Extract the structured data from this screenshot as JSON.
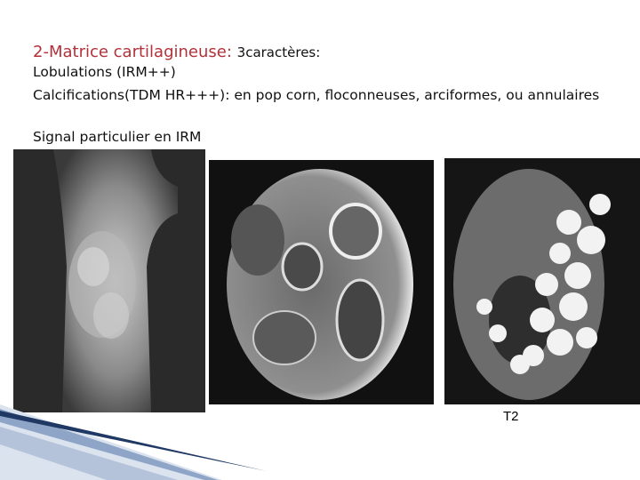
{
  "slide": {
    "heading": "2-Matrice cartilagineuse:",
    "heading_suffix": "3caractères:",
    "bullets": [
      "Lobulations (IRM++)",
      "Calcifications(TDM HR+++): en pop corn, floconneuses, arciformes, ou annulaires",
      "Signal particulier en IRM"
    ],
    "image_caption": "T2"
  }
}
